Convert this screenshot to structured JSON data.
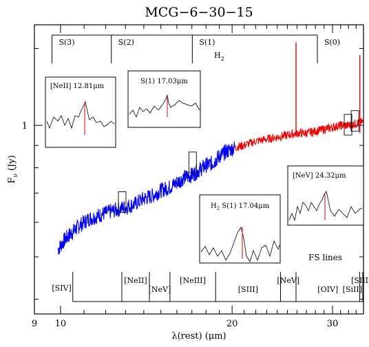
{
  "chart_data": {
    "type": "line",
    "title": "MCG−6−30−15",
    "xlabel": "λ(rest)  (μm)",
    "ylabel": "Fν (Jy)",
    "ylabel_parts": {
      "main": "F",
      "sub": "ν",
      "unit": " (Jy)"
    },
    "xscale": "log",
    "yscale": "log",
    "xlim": [
      9,
      34
    ],
    "ylim": [
      0.37,
      1.7
    ],
    "x_ticks": [
      {
        "value": 9,
        "label": "9"
      },
      {
        "value": 10,
        "label": "10"
      },
      {
        "value": 20,
        "label": "20"
      },
      {
        "value": 30,
        "label": "30"
      }
    ],
    "y_ticks": [
      {
        "value": 1,
        "label": "1"
      }
    ],
    "series": [
      {
        "color": "#0000ee",
        "points": [
          [
            9.9,
            0.52
          ],
          [
            10.2,
            0.55
          ],
          [
            10.5,
            0.57
          ],
          [
            10.8,
            0.59
          ],
          [
            11.2,
            0.61
          ],
          [
            11.6,
            0.62
          ],
          [
            12.0,
            0.63
          ],
          [
            12.5,
            0.64
          ],
          [
            13.0,
            0.65
          ],
          [
            13.5,
            0.66
          ],
          [
            14.0,
            0.68
          ],
          [
            14.5,
            0.69
          ],
          [
            15.0,
            0.71
          ],
          [
            15.5,
            0.72
          ],
          [
            16.0,
            0.74
          ],
          [
            16.5,
            0.76
          ],
          [
            17.0,
            0.77
          ],
          [
            17.5,
            0.79
          ],
          [
            18.0,
            0.81
          ],
          [
            18.5,
            0.82
          ],
          [
            19.0,
            0.85
          ],
          [
            19.5,
            0.87
          ],
          [
            20.2,
            0.89
          ]
        ]
      },
      {
        "color": "#ee0000",
        "points": [
          [
            20.2,
            0.89
          ],
          [
            21.0,
            0.9
          ],
          [
            22.0,
            0.92
          ],
          [
            23.0,
            0.93
          ],
          [
            24.0,
            0.94
          ],
          [
            25.0,
            0.95
          ],
          [
            26.0,
            0.96
          ],
          [
            27.0,
            0.96
          ],
          [
            28.0,
            0.97
          ],
          [
            29.0,
            0.98
          ],
          [
            30.0,
            0.99
          ],
          [
            31.0,
            1.0
          ],
          [
            32.0,
            1.0
          ],
          [
            33.0,
            1.01
          ],
          [
            34.0,
            1.02
          ]
        ]
      }
    ],
    "spikes": [
      {
        "x": 25.89,
        "y_top": 1.55,
        "color": "#ee0000"
      },
      {
        "x": 33.5,
        "y_top": 1.45,
        "color": "#ee0000"
      }
    ],
    "h2_label": {
      "main": "H",
      "sub": "2"
    },
    "h2_lines": [
      {
        "label": "S(3)",
        "x": 9.66
      },
      {
        "label": "S(2)",
        "x": 12.28
      },
      {
        "label": "S(1)",
        "x": 17.03
      },
      {
        "label": "S(0)",
        "x": 28.22
      }
    ],
    "fs_title": "FS lines",
    "fs_lines": [
      {
        "label": "[SIV]",
        "x": 10.51
      },
      {
        "label": "[NeII]",
        "x": 12.81
      },
      {
        "label": "[NeV]",
        "x": 14.32
      },
      {
        "label": "[NeIII]",
        "x": 15.56
      },
      {
        "label": "[SIII]",
        "x": 18.71
      },
      {
        "label": "[NeV]",
        "x": 24.32
      },
      {
        "label": "[OIV]",
        "x": 25.89
      },
      {
        "label": "[SIII]",
        "x": 33.48
      },
      {
        "label": "[SiII]",
        "x": 34.8
      }
    ],
    "marker_boxes": [
      {
        "x": 12.81,
        "y": 0.665
      },
      {
        "x": 17.03,
        "y": 0.82
      },
      {
        "x": 31.9,
        "y": 1.0
      },
      {
        "x": 32.8,
        "y": 1.02
      }
    ],
    "insets": [
      {
        "title": "[NeII] 12.81μm"
      },
      {
        "title": "S(1) 17.03μm"
      },
      {
        "title": "[NeV] 24.32μm"
      },
      {
        "title_main": "H",
        "title_sub": "2",
        "title_rest": " S(1) 17.04μm"
      }
    ]
  }
}
